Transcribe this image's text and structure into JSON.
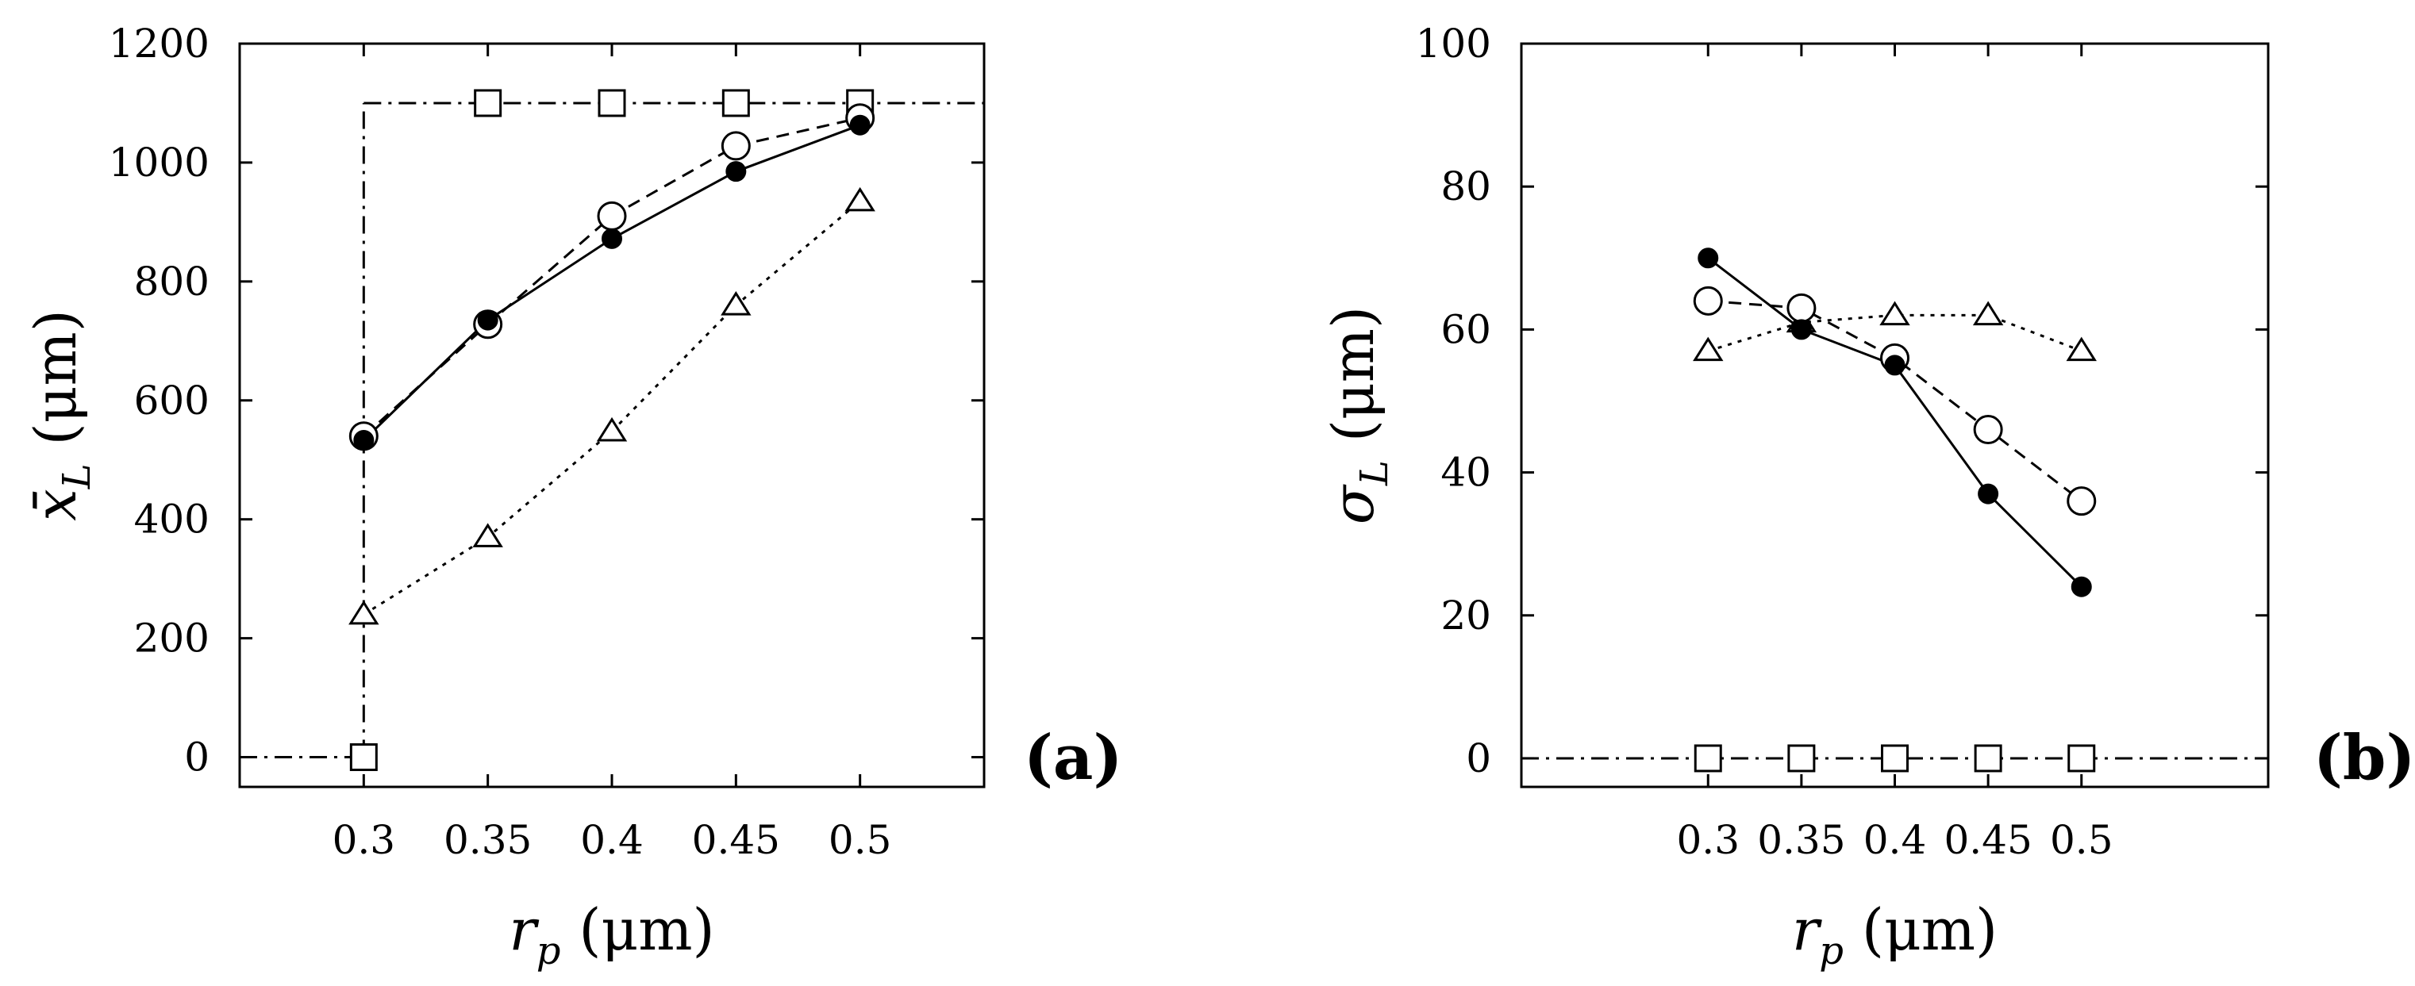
{
  "chart_data": [
    {
      "type": "line",
      "panel_label": "(a)",
      "xlabel": {
        "main": "r",
        "sub": "p",
        "unit": " (μm)"
      },
      "ylabel": {
        "main": "x̄",
        "sub": "L",
        "unit": " (μm)"
      },
      "xlim": [
        0.25,
        0.55
      ],
      "ylim": [
        -50,
        1200
      ],
      "x_ticks": [
        "0.3",
        "0.35",
        "0.4",
        "0.45",
        "0.5"
      ],
      "y_ticks": [
        "0",
        "200",
        "400",
        "600",
        "800",
        "1000",
        "1200"
      ],
      "x": [
        0.3,
        0.35,
        0.4,
        0.45,
        0.5
      ],
      "series": [
        {
          "marker": "filled-circle",
          "line": "solid",
          "values": [
            533,
            735,
            872,
            985,
            1063
          ]
        },
        {
          "marker": "open-circle",
          "line": "dashed",
          "values": [
            540,
            728,
            910,
            1028,
            1075
          ]
        },
        {
          "marker": "open-triangle",
          "line": "dotted",
          "values": [
            240,
            370,
            548,
            760,
            935
          ]
        },
        {
          "marker": "open-square",
          "line": "dash-dot",
          "values": [
            0,
            1100,
            1100,
            1100,
            1100
          ]
        }
      ],
      "reference_lines": [
        {
          "line": "dash-dot",
          "from": [
            0.25,
            0
          ],
          "to": [
            0.3,
            0
          ]
        },
        {
          "line": "dash-dot",
          "from": [
            0.3,
            0
          ],
          "to": [
            0.3,
            1100
          ]
        },
        {
          "line": "dash-dot",
          "from": [
            0.3,
            1100
          ],
          "to": [
            0.55,
            1100
          ]
        }
      ]
    },
    {
      "type": "line",
      "panel_label": "(b)",
      "xlabel": {
        "main": "r",
        "sub": "p",
        "unit": " (μm)"
      },
      "ylabel": {
        "main": "σ",
        "sub": "L",
        "unit": " (μm)"
      },
      "xlim": [
        0.2,
        0.6
      ],
      "ylim": [
        -4,
        100
      ],
      "x_ticks": [
        "0.3",
        "0.35",
        "0.4",
        "0.45",
        "0.5"
      ],
      "y_ticks": [
        "0",
        "20",
        "40",
        "60",
        "80",
        "100"
      ],
      "x": [
        0.3,
        0.35,
        0.4,
        0.45,
        0.5
      ],
      "series": [
        {
          "marker": "filled-circle",
          "line": "solid",
          "values": [
            70,
            60,
            55,
            37,
            24
          ]
        },
        {
          "marker": "open-circle",
          "line": "dashed",
          "values": [
            64,
            63,
            56,
            46,
            36
          ]
        },
        {
          "marker": "open-triangle",
          "line": "dotted",
          "values": [
            57,
            61,
            62,
            62,
            57
          ]
        },
        {
          "marker": "open-square",
          "line": "dash-dot",
          "values": [
            0,
            0,
            0,
            0,
            0
          ]
        }
      ],
      "reference_lines": [
        {
          "line": "dash-dot",
          "from": [
            0.2,
            0
          ],
          "to": [
            0.6,
            0
          ]
        }
      ]
    }
  ]
}
